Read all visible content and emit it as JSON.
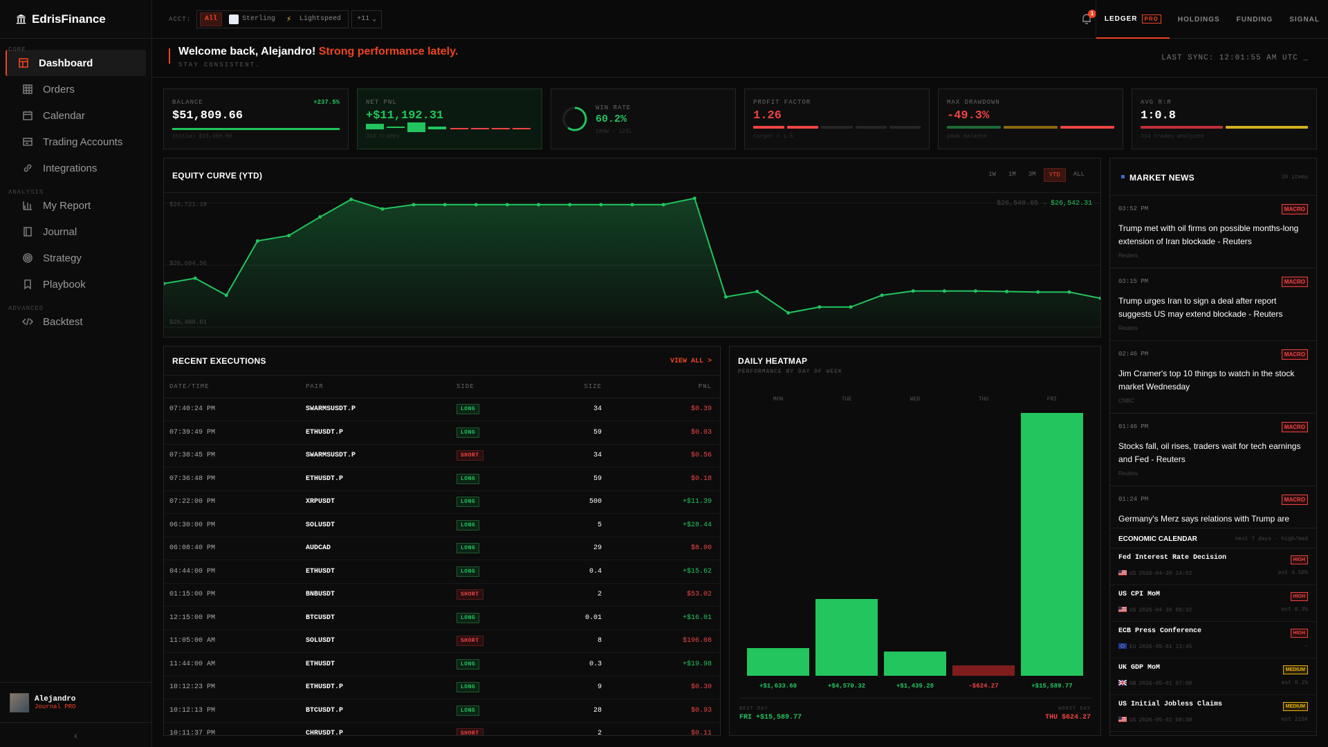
{
  "brand": "EdrisFinance",
  "sidebar": {
    "sections": [
      "CORE",
      "ANALYSIS",
      "ADVANCED"
    ],
    "items": [
      {
        "label": "Dashboard",
        "icon": "dashboard-icon"
      },
      {
        "label": "Orders",
        "icon": "orders-icon"
      },
      {
        "label": "Calendar",
        "icon": "calendar-icon"
      },
      {
        "label": "Trading Accounts",
        "icon": "accounts-icon"
      },
      {
        "label": "Integrations",
        "icon": "link-icon"
      },
      {
        "label": "My Report",
        "icon": "bar-chart-icon"
      },
      {
        "label": "Journal",
        "icon": "journal-icon"
      },
      {
        "label": "Strategy",
        "icon": "target-icon"
      },
      {
        "label": "Playbook",
        "icon": "bookmark-icon"
      },
      {
        "label": "Backtest",
        "icon": "code-icon"
      }
    ],
    "user": {
      "name": "Alejandro",
      "plan": "Journal PRO"
    },
    "collapse": "‹"
  },
  "topbar": {
    "acct_label": "ACCT:",
    "accounts": [
      "All",
      "Sterling",
      "Lightspeed"
    ],
    "more": "+11",
    "notifications": "1",
    "tabs": [
      "LEDGER",
      "HOLDINGS",
      "FUNDING",
      "SIGNAL"
    ],
    "pro": "PRO"
  },
  "welcome": {
    "greeting": "Welcome back, Alejandro!",
    "highlight": "Strong performance lately.",
    "subtitle": "STAY CONSISTENT.",
    "sync": "LAST SYNC: 12:01:55 AM UTC _"
  },
  "stats": {
    "balance": {
      "label": "BALANCE",
      "value": "$51,809.66",
      "change": "+237.5%",
      "sub": "initial $15,350.00"
    },
    "netpnl": {
      "label": "NET PNL",
      "value": "+$11,192.31",
      "sub": "314 trades"
    },
    "winrate": {
      "label": "WIN RATE",
      "value": "60.2%",
      "sub": "189W · 125L",
      "fraction": 0.602
    },
    "profitfactor": {
      "label": "PROFIT FACTOR",
      "value": "1.26",
      "sub": "target > 1.5"
    },
    "drawdown": {
      "label": "MAX DRAWDOWN",
      "value": "-49.3%",
      "sub": "peak balance"
    },
    "avgrr": {
      "label": "AVG R:R",
      "value": "1:0.8",
      "sub": "314 trades analyzed"
    }
  },
  "equity": {
    "title": "EQUITY CURVE (YTD)",
    "ranges": [
      "1W",
      "1M",
      "3M",
      "YTD",
      "ALL"
    ],
    "active_range": "YTD",
    "y_labels": [
      "$26,721.18",
      "$26,604.56",
      "$26,488.01"
    ],
    "last_prev": "$26,540.65 →",
    "last_value": "$26,542.31"
  },
  "chart_data": {
    "type": "area",
    "title": "EQUITY CURVE (YTD)",
    "y_ticks": [
      26721.18,
      26604.56,
      26488.01
    ],
    "ylim": [
      26470,
      26740
    ],
    "values": [
      26570,
      26580,
      26548,
      26650,
      26660,
      26695,
      26728,
      26710,
      26718,
      26718,
      26718,
      26718,
      26718,
      26718,
      26718,
      26718,
      26718,
      26730,
      26545,
      26555,
      26515,
      26526,
      26526,
      26548,
      26556,
      26556,
      26556,
      26555,
      26554,
      26554,
      26542.31
    ]
  },
  "executions": {
    "title": "RECENT EXECUTIONS",
    "view_all": "VIEW ALL >",
    "columns": [
      "DATE/TIME",
      "PAIR",
      "SIDE",
      "SIZE",
      "PNL"
    ],
    "rows": [
      {
        "time": "07:40:24 PM",
        "pair": "SWARMSUSDT.P",
        "side": "LONG",
        "size": "34",
        "pnl": "$0.39",
        "pos": false
      },
      {
        "time": "07:39:49 PM",
        "pair": "ETHUSDT.P",
        "side": "LONG",
        "size": "59",
        "pnl": "$0.03",
        "pos": false
      },
      {
        "time": "07:38:45 PM",
        "pair": "SWARMSUSDT.P",
        "side": "SHORT",
        "size": "34",
        "pnl": "$0.56",
        "pos": false
      },
      {
        "time": "07:36:48 PM",
        "pair": "ETHUSDT.P",
        "side": "LONG",
        "size": "59",
        "pnl": "$0.18",
        "pos": false
      },
      {
        "time": "07:22:00 PM",
        "pair": "XRPUSDT",
        "side": "LONG",
        "size": "500",
        "pnl": "+$11.39",
        "pos": true
      },
      {
        "time": "06:30:00 PM",
        "pair": "SOLUSDT",
        "side": "LONG",
        "size": "5",
        "pnl": "+$28.44",
        "pos": true
      },
      {
        "time": "06:08:40 PM",
        "pair": "AUDCAD",
        "side": "LONG",
        "size": "29",
        "pnl": "$8.00",
        "pos": false
      },
      {
        "time": "04:44:00 PM",
        "pair": "ETHUSDT",
        "side": "LONG",
        "size": "0.4",
        "pnl": "+$15.62",
        "pos": true
      },
      {
        "time": "01:15:00 PM",
        "pair": "BNBUSDT",
        "side": "SHORT",
        "size": "2",
        "pnl": "$53.02",
        "pos": false
      },
      {
        "time": "12:15:00 PM",
        "pair": "BTCUSDT",
        "side": "LONG",
        "size": "0.01",
        "pnl": "+$16.01",
        "pos": true
      },
      {
        "time": "11:05:00 AM",
        "pair": "SOLUSDT",
        "side": "SHORT",
        "size": "8",
        "pnl": "$196.08",
        "pos": false
      },
      {
        "time": "11:44:00 AM",
        "pair": "ETHUSDT",
        "side": "LONG",
        "size": "0.3",
        "pnl": "+$19.98",
        "pos": true
      },
      {
        "time": "10:12:23 PM",
        "pair": "ETHUSDT.P",
        "side": "LONG",
        "size": "9",
        "pnl": "$0.30",
        "pos": false
      },
      {
        "time": "10:12:13 PM",
        "pair": "BTCUSDT.P",
        "side": "LONG",
        "size": "28",
        "pnl": "$0.93",
        "pos": false
      },
      {
        "time": "10:11:37 PM",
        "pair": "CHRUSDT.P",
        "side": "SHORT",
        "size": "2",
        "pnl": "$0.11",
        "pos": false
      }
    ]
  },
  "heatmap": {
    "title": "DAILY HEATMAP",
    "subtitle": "PERFORMANCE BY DAY OF WEEK",
    "days": [
      {
        "day": "MON",
        "value": 1633.6,
        "label": "+$1,633.60"
      },
      {
        "day": "TUE",
        "value": 4570.32,
        "label": "+$4,570.32"
      },
      {
        "day": "WED",
        "value": 1439.28,
        "label": "+$1,439.28"
      },
      {
        "day": "THU",
        "value": -624.27,
        "label": "-$624.27"
      },
      {
        "day": "FRI",
        "value": 15589.77,
        "label": "+$15,589.77"
      }
    ],
    "best_label": "BEST DAY",
    "best_value": "FRI +$15,589.77",
    "worst_label": "WORST DAY",
    "worst_value": "THU $624.27"
  },
  "news": {
    "title": "MARKET NEWS",
    "count": "20 items",
    "items": [
      {
        "time": "03:52 PM",
        "tag": "MACRO",
        "text": "Trump met with oil firms on possible months-long extension of Iran blockade - Reuters",
        "source": "Reuters"
      },
      {
        "time": "03:15 PM",
        "tag": "MACRO",
        "text": "Trump urges Iran to sign a deal after report suggests US may extend blockade - Reuters",
        "source": "Reuters"
      },
      {
        "time": "02:46 PM",
        "tag": "MACRO",
        "text": "Jim Cramer's top 10 things to watch in the stock market Wednesday",
        "source": "CNBC"
      },
      {
        "time": "01:46 PM",
        "tag": "MACRO",
        "text": "Stocks fall, oil rises, traders wait for tech earnings and Fed - Reuters",
        "source": "Reuters"
      },
      {
        "time": "01:24 PM",
        "tag": "MACRO",
        "text": "Germany's Merz says relations with Trump are",
        "source": ""
      }
    ]
  },
  "calendar": {
    "title": "ECONOMIC CALENDAR",
    "subtitle": "next 7 days · high/med",
    "items": [
      {
        "name": "Fed Interest Rate Decision",
        "impact": "HIGH",
        "country": "US",
        "date": "2026-04-30 14:02",
        "est": "est 4.50%",
        "flag": "us"
      },
      {
        "name": "US CPI MoM",
        "impact": "HIGH",
        "country": "US",
        "date": "2026-04-30 08:32",
        "est": "est 0.3%",
        "flag": "us"
      },
      {
        "name": "ECB Press Conference",
        "impact": "HIGH",
        "country": "EU",
        "date": "2026-05-01 13:45",
        "est": "—",
        "flag": "eu"
      },
      {
        "name": "UK GDP MoM",
        "impact": "MEDIUM",
        "country": "GB",
        "date": "2026-05-01 07:00",
        "est": "est 0.1%",
        "flag": "gb"
      },
      {
        "name": "US Initial Jobless Claims",
        "impact": "MEDIUM",
        "country": "US",
        "date": "2026-05-02 08:30",
        "est": "est 215K",
        "flag": "us"
      }
    ]
  },
  "colors": {
    "accent": "#ef4423",
    "positive": "#22c55e",
    "negative": "#ef4444",
    "warning": "#eab308"
  }
}
